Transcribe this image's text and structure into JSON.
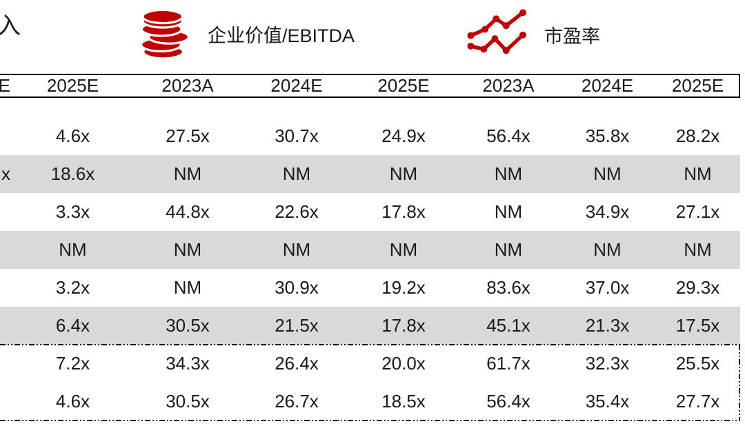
{
  "legend": {
    "left_fragment_label": "入",
    "ev_ebitda_label": "企业价值/EBITDA",
    "pe_label": "市盈率"
  },
  "colors": {
    "accent_red": "#C00000",
    "shaded_row": "#D9D9D9",
    "border_black": "#000000"
  },
  "icons": {
    "coins": "coins-icon",
    "line_chart": "line-chart-icon"
  },
  "table": {
    "headers": [
      "E",
      "2025E",
      "2023A",
      "2024E",
      "2025E",
      "2023A",
      "2024E",
      "2025E"
    ],
    "rows": [
      {
        "shaded": false,
        "in_summary_box": false,
        "cells": [
          "",
          "4.6x",
          "27.5x",
          "30.7x",
          "24.9x",
          "56.4x",
          "35.8x",
          "28.2x"
        ]
      },
      {
        "shaded": true,
        "in_summary_box": false,
        "cells": [
          "x",
          "18.6x",
          "NM",
          "NM",
          "NM",
          "NM",
          "NM",
          "NM"
        ]
      },
      {
        "shaded": false,
        "in_summary_box": false,
        "cells": [
          "",
          "3.3x",
          "44.8x",
          "22.6x",
          "17.8x",
          "NM",
          "34.9x",
          "27.1x"
        ]
      },
      {
        "shaded": true,
        "in_summary_box": false,
        "cells": [
          "",
          "NM",
          "NM",
          "NM",
          "NM",
          "NM",
          "NM",
          "NM"
        ]
      },
      {
        "shaded": false,
        "in_summary_box": false,
        "cells": [
          "",
          "3.2x",
          "NM",
          "30.9x",
          "19.2x",
          "83.6x",
          "37.0x",
          "29.3x"
        ]
      },
      {
        "shaded": true,
        "in_summary_box": false,
        "cells": [
          "",
          "6.4x",
          "30.5x",
          "21.5x",
          "17.8x",
          "45.1x",
          "21.3x",
          "17.5x"
        ]
      },
      {
        "shaded": false,
        "in_summary_box": true,
        "cells": [
          "",
          "7.2x",
          "34.3x",
          "26.4x",
          "20.0x",
          "61.7x",
          "32.3x",
          "25.5x"
        ]
      },
      {
        "shaded": false,
        "in_summary_box": true,
        "cells": [
          "",
          "4.6x",
          "30.5x",
          "26.7x",
          "18.5x",
          "56.4x",
          "35.4x",
          "27.7x"
        ]
      }
    ]
  }
}
